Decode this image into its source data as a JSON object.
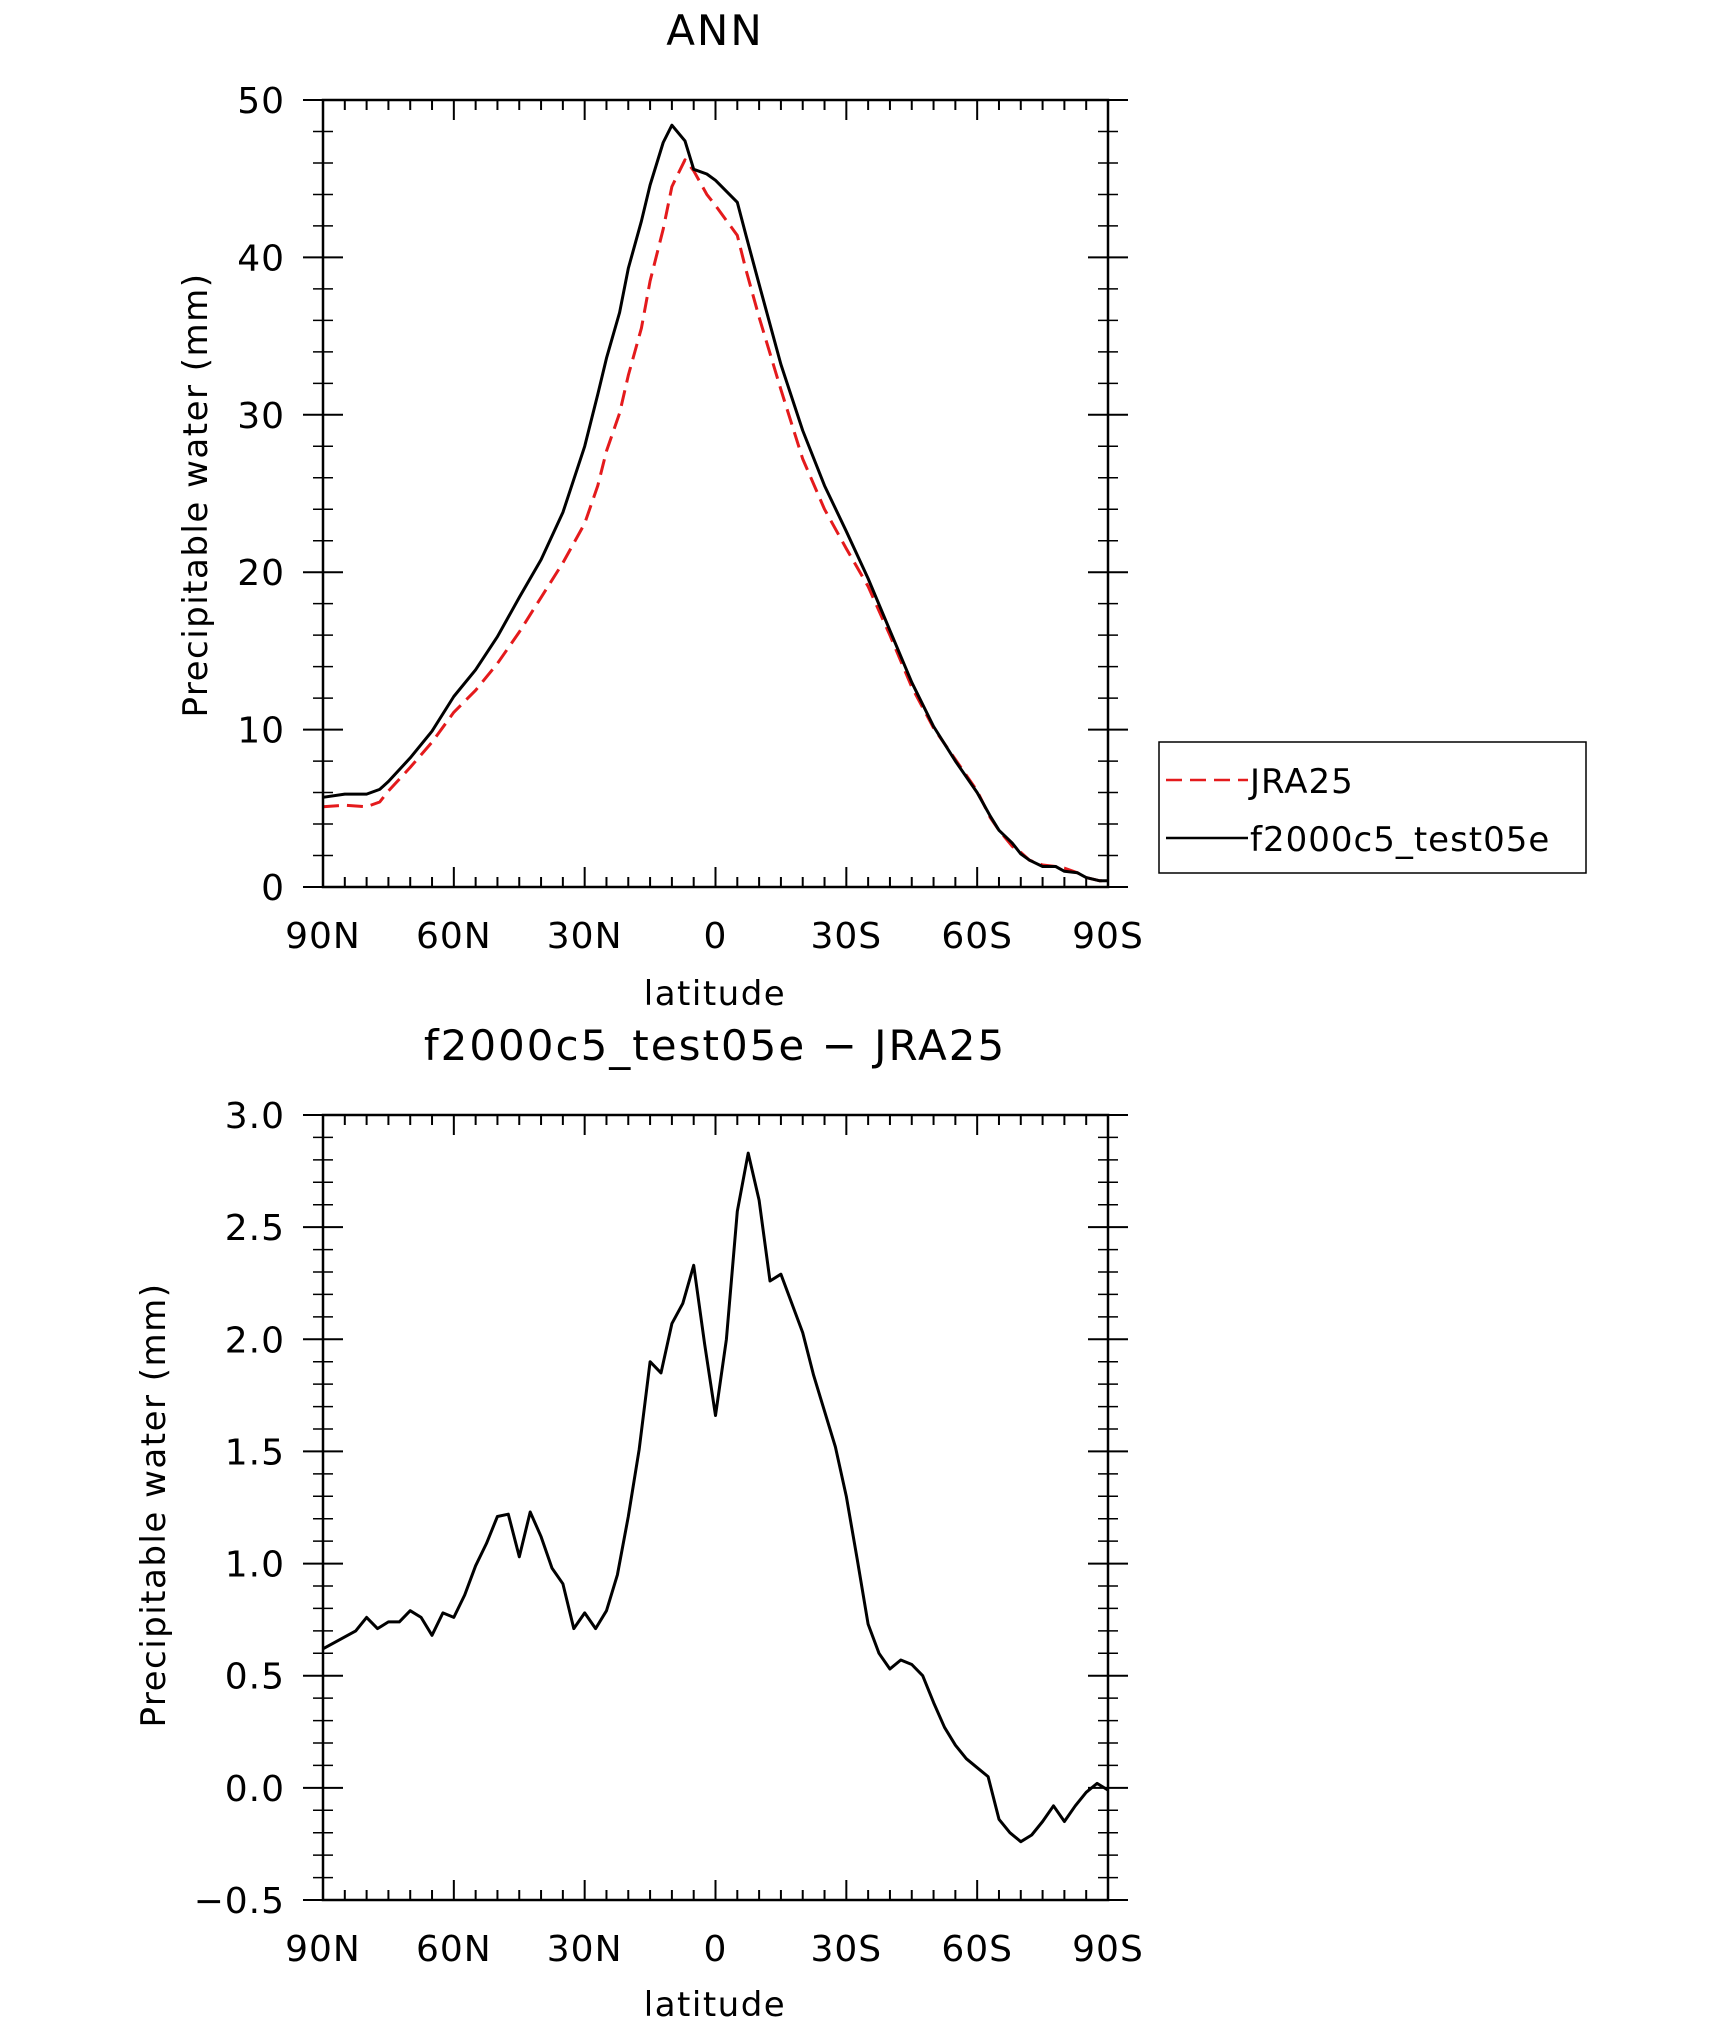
{
  "chart_data": [
    {
      "type": "line",
      "title": "ANN",
      "xlabel": "latitude",
      "ylabel": "Precipitable water (mm)",
      "xlim": [
        90,
        -90
      ],
      "ylim": [
        0,
        50
      ],
      "x_ticks": [
        90,
        60,
        30,
        0,
        -30,
        -60,
        -90
      ],
      "x_tick_labels": [
        "90N",
        "60N",
        "30N",
        "0",
        "30S",
        "60S",
        "90S"
      ],
      "y_ticks": [
        0,
        10,
        20,
        30,
        40,
        50
      ],
      "y_tick_labels": [
        "0",
        "10",
        "20",
        "30",
        "40",
        "50"
      ],
      "grid": false,
      "legend_position": "right",
      "series": [
        {
          "name": "JRA25",
          "color": "#e41a1c",
          "style": "dashed",
          "x": [
            90,
            85,
            80,
            77,
            75,
            70,
            65,
            60,
            55,
            50,
            45,
            40,
            35,
            30,
            27,
            25,
            22,
            20,
            17,
            15,
            12,
            10,
            7,
            5,
            2,
            0,
            -5,
            -7,
            -10,
            -15,
            -20,
            -25,
            -30,
            -35,
            -40,
            -45,
            -50,
            -55,
            -60,
            -63,
            -65,
            -68,
            -70,
            -72,
            -75,
            -78,
            -80,
            -83,
            -85,
            -88,
            -90
          ],
          "y": [
            5.1,
            5.2,
            5.1,
            5.4,
            6.1,
            7.6,
            9.2,
            11.1,
            12.5,
            14.2,
            16.2,
            18.4,
            20.6,
            23.1,
            25.5,
            27.7,
            30.1,
            32.5,
            35.5,
            38.5,
            41.8,
            44.5,
            46.2,
            45.5,
            44.0,
            43.3,
            41.4,
            39.2,
            36.2,
            31.6,
            27.2,
            24.0,
            21.5,
            19.1,
            16.0,
            12.7,
            10.1,
            8.1,
            6.1,
            4.4,
            3.6,
            2.6,
            2.2,
            1.7,
            1.4,
            1.3,
            1.2,
            0.9,
            0.6,
            0.4,
            0.4
          ]
        },
        {
          "name": "f2000c5_test05e",
          "color": "#000000",
          "style": "solid",
          "x": [
            90,
            85,
            80,
            77,
            75,
            70,
            65,
            60,
            55,
            50,
            45,
            40,
            35,
            30,
            27,
            25,
            22,
            20,
            17,
            15,
            12,
            10,
            7,
            5,
            2,
            0,
            -5,
            -7,
            -10,
            -15,
            -20,
            -25,
            -30,
            -35,
            -40,
            -45,
            -50,
            -55,
            -60,
            -63,
            -65,
            -68,
            -70,
            -72,
            -75,
            -78,
            -80,
            -83,
            -85,
            -88,
            -90
          ],
          "y": [
            5.7,
            5.9,
            5.9,
            6.2,
            6.7,
            8.2,
            9.9,
            12.1,
            13.8,
            15.9,
            18.4,
            20.8,
            23.8,
            28.0,
            31.3,
            33.6,
            36.5,
            39.3,
            42.3,
            44.6,
            47.3,
            48.4,
            47.4,
            45.6,
            45.3,
            44.9,
            43.5,
            41.4,
            38.3,
            33.2,
            29.0,
            25.5,
            22.6,
            19.6,
            16.3,
            13.0,
            10.2,
            8.0,
            6.0,
            4.5,
            3.6,
            2.8,
            2.1,
            1.7,
            1.3,
            1.3,
            1.0,
            0.9,
            0.6,
            0.4,
            0.4
          ]
        }
      ]
    },
    {
      "type": "line",
      "title": "f2000c5_test05e − JRA25",
      "xlabel": "latitude",
      "ylabel": "Precipitable water (mm)",
      "xlim": [
        90,
        -90
      ],
      "ylim": [
        -0.5,
        3.0
      ],
      "x_ticks": [
        90,
        60,
        30,
        0,
        -30,
        -60,
        -90
      ],
      "x_tick_labels": [
        "90N",
        "60N",
        "30N",
        "0",
        "30S",
        "60S",
        "90S"
      ],
      "y_ticks": [
        -0.5,
        0.0,
        0.5,
        1.0,
        1.5,
        2.0,
        2.5,
        3.0
      ],
      "y_tick_labels": [
        "−0.5",
        "0.0",
        "0.5",
        "1.0",
        "1.5",
        "2.0",
        "2.5",
        "3.0"
      ],
      "grid": false,
      "series": [
        {
          "color": "#000000",
          "style": "solid",
          "x": [
            90,
            82.5,
            80,
            77.5,
            75,
            72.5,
            70,
            67.5,
            65,
            62.5,
            60,
            57.5,
            55,
            52.5,
            50,
            47.5,
            45,
            42.5,
            40,
            37.5,
            35,
            32.5,
            30,
            27.5,
            25,
            22.5,
            20,
            17.5,
            15,
            12.5,
            10,
            7.5,
            5,
            2.5,
            0,
            -2.5,
            -5,
            -7.5,
            -10,
            -12.5,
            -15,
            -17.5,
            -20,
            -22.5,
            -25,
            -27.5,
            -30,
            -32.5,
            -35,
            -37.5,
            -40,
            -42.5,
            -45,
            -47.5,
            -50,
            -52.5,
            -55,
            -57.5,
            -60,
            -62.5,
            -65,
            -67.5,
            -70,
            -72.5,
            -75,
            -77.5,
            -80,
            -82.5,
            -85,
            -87.5,
            -90
          ],
          "y": [
            0.62,
            0.7,
            0.76,
            0.71,
            0.74,
            0.74,
            0.79,
            0.76,
            0.68,
            0.78,
            0.76,
            0.86,
            0.99,
            1.09,
            1.21,
            1.22,
            1.03,
            1.23,
            1.12,
            0.98,
            0.91,
            0.71,
            0.78,
            0.71,
            0.79,
            0.95,
            1.21,
            1.51,
            1.9,
            1.85,
            2.07,
            2.16,
            2.33,
            1.98,
            1.66,
            2.0,
            2.57,
            2.83,
            2.62,
            2.26,
            2.29,
            2.16,
            2.03,
            1.84,
            1.68,
            1.52,
            1.3,
            1.02,
            0.73,
            0.6,
            0.53,
            0.57,
            0.55,
            0.5,
            0.38,
            0.27,
            0.19,
            0.13,
            0.09,
            0.05,
            -0.14,
            -0.2,
            -0.24,
            -0.21,
            -0.15,
            -0.08,
            -0.15,
            -0.08,
            -0.02,
            0.02,
            -0.01
          ]
        }
      ]
    }
  ]
}
